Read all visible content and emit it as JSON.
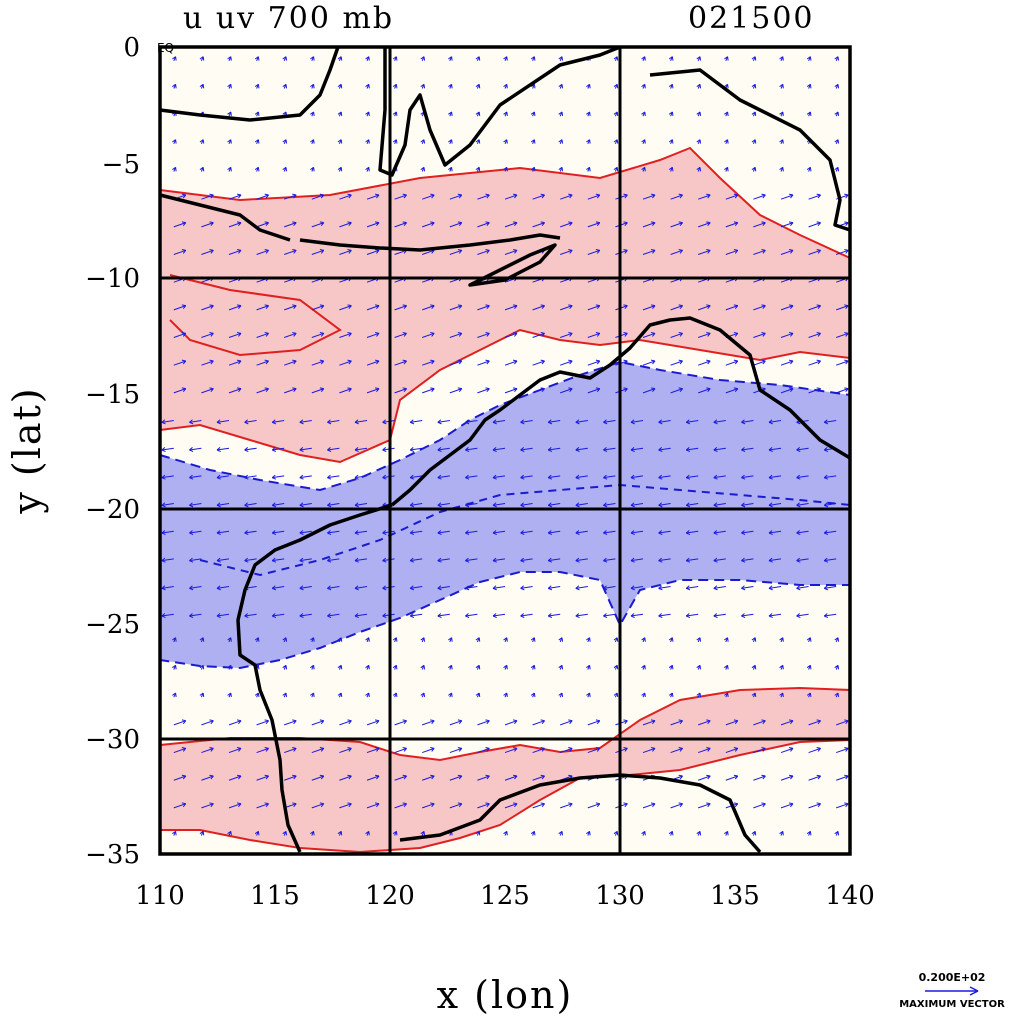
{
  "chart_data": {
    "type": "contour",
    "title_left": "u uv 700 mb",
    "title_right": "021500",
    "xlabel": "x (lon)",
    "ylabel": "y (lat)",
    "xlim": [
      110,
      140
    ],
    "ylim": [
      -35,
      0
    ],
    "x_ticks": [
      110,
      115,
      120,
      125,
      130,
      135,
      140
    ],
    "x_tick_labels": [
      "110",
      "115",
      "120",
      "125",
      "130",
      "135",
      "140"
    ],
    "y_ticks": [
      0,
      -5,
      -10,
      -15,
      -20,
      -25,
      -30,
      -35
    ],
    "y_tick_labels": [
      "0",
      "−5",
      "−10",
      "−15",
      "−20",
      "−25",
      "−30",
      "−35"
    ],
    "y_zero_suffix": "EQ",
    "grid_lines_x": [
      120,
      130
    ],
    "grid_lines_y": [
      -10,
      -20,
      -30
    ],
    "positive_color": "#f7c7c7",
    "positive_line": "#e02020",
    "negative_color": "#aeb0f2",
    "negative_line": "#1a1ad0",
    "vector_color": "#1a1ae0",
    "coast_color": "#000000",
    "vector_legend": {
      "value": "0.200E+02",
      "label": "MAXIMUM VECTOR"
    },
    "easterly_band_lat": [
      -25,
      -15
    ],
    "westerly_bands_lat": [
      [
        -16,
        -6
      ],
      [
        -33,
        -29
      ]
    ]
  }
}
